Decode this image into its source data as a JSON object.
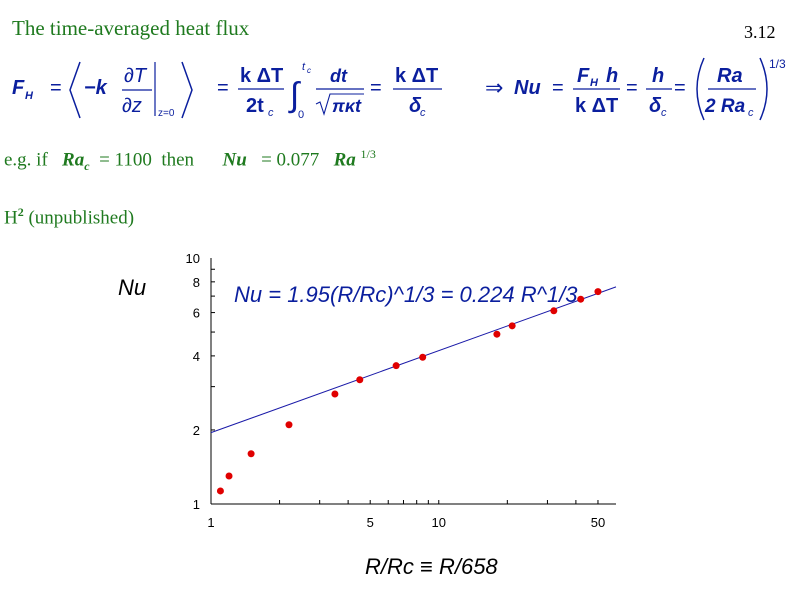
{
  "header": {
    "title": "The time-averaged heat flux",
    "page_number": "3.12"
  },
  "formula": {
    "lhs": "F",
    "lhs_sub": "H",
    "eq1_neg_k": "−k",
    "partial_T": "∂T",
    "partial_z": "∂z",
    "eval_at": "z=0",
    "eq2_num": "k ΔT",
    "eq2_den": "2t",
    "eq2_den_sub": "c",
    "int_upper": "t",
    "int_upper_sub": "c",
    "int_lower": "0",
    "dt": "dt",
    "sqrt_arg": "πκt",
    "eq3_num": "k ΔT",
    "eq3_den": "δ",
    "eq3_den_sub": "c",
    "implies": "⇒",
    "nu": "Nu",
    "eq4_num": "F",
    "eq4_num_sub": "H",
    "eq4_num_h": "h",
    "eq4_den": "k ΔT",
    "eq5_num": "h",
    "eq5_den": "δ",
    "eq5_den_sub": "c",
    "eq6_num": "Ra",
    "eq6_den": "2 Ra",
    "eq6_den_sub": "c",
    "exponent": "1/3"
  },
  "example": {
    "prefix": "e.g. if",
    "ra": "Ra",
    "ra_sub": "c",
    "equals_value": "= 1100",
    "then": "then",
    "nu": "Nu",
    "nu_value": "= 0.077",
    "ra2": "Ra",
    "exponent": "1/3"
  },
  "section": {
    "label": "H",
    "sup": "2",
    "note": "(unpublished)"
  },
  "chart_data": {
    "type": "scatter",
    "xscale": "log",
    "yscale": "log",
    "xlim": [
      1,
      60
    ],
    "ylim": [
      1,
      10
    ],
    "xticks": [
      1,
      5,
      10,
      50
    ],
    "yticks": [
      1,
      2,
      4,
      6,
      8,
      10
    ],
    "xlabel": "R/Rc ≡ R/658",
    "ylabel": "Nu",
    "annotation": "Nu = 1.95(R/Rc)^1/3 = 0.224 R^1/3",
    "points": [
      {
        "x": 1.1,
        "y": 1.13
      },
      {
        "x": 1.2,
        "y": 1.3
      },
      {
        "x": 1.5,
        "y": 1.6
      },
      {
        "x": 2.2,
        "y": 2.1
      },
      {
        "x": 3.5,
        "y": 2.8
      },
      {
        "x": 4.5,
        "y": 3.2
      },
      {
        "x": 6.5,
        "y": 3.65
      },
      {
        "x": 8.5,
        "y": 3.95
      },
      {
        "x": 18,
        "y": 4.9
      },
      {
        "x": 21,
        "y": 5.3
      },
      {
        "x": 32,
        "y": 6.1
      },
      {
        "x": 42,
        "y": 6.8
      },
      {
        "x": 50,
        "y": 7.3
      }
    ],
    "fit_line": {
      "coef": 1.95,
      "exponent": 0.3333
    },
    "colors": {
      "points": "#e00000",
      "line": "#1a1aa8",
      "annotation": "#0b1f9e"
    }
  }
}
